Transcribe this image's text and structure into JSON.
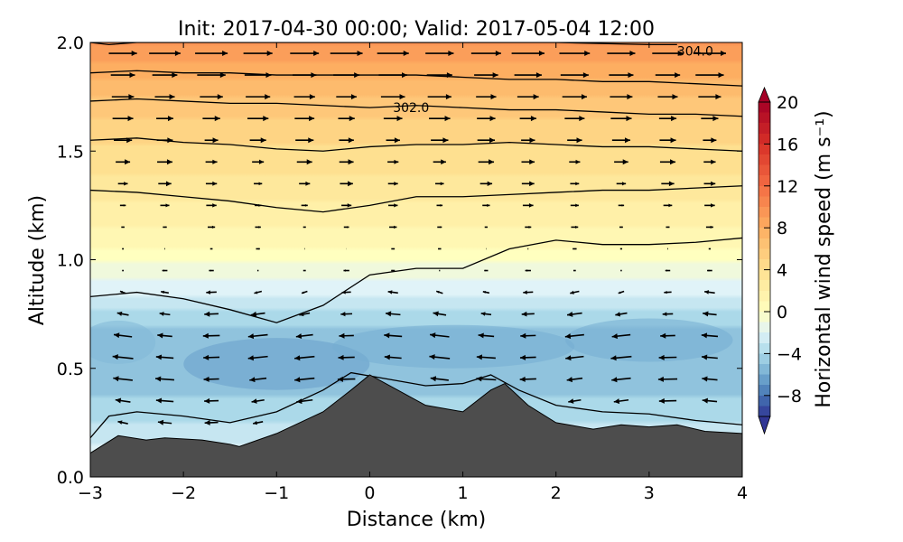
{
  "chart_data": {
    "type": "heatmap",
    "title": "Init: 2017-04-30 00:00; Valid: 2017-05-04 12:00",
    "xlabel": "Distance (km)",
    "ylabel": "Altitude (km)",
    "xlim": [
      -3,
      4
    ],
    "ylim": [
      0,
      2
    ],
    "xticks": [
      "−3",
      "−2",
      "−1",
      "0",
      "1",
      "2",
      "3",
      "4"
    ],
    "xtick_values": [
      -3,
      -2,
      -1,
      0,
      1,
      2,
      3,
      4
    ],
    "yticks": [
      "0.0",
      "0.5",
      "1.0",
      "1.5",
      "2.0"
    ],
    "ytick_values": [
      0,
      0.5,
      1.0,
      1.5,
      2.0
    ],
    "colorbar": {
      "label": "Horizontal wind speed (m s⁻¹)",
      "range": [
        -10,
        20
      ],
      "ticks": [
        "20",
        "16",
        "12",
        "8",
        "4",
        "0",
        "−4",
        "−8"
      ],
      "tick_values": [
        20,
        16,
        12,
        8,
        4,
        0,
        -4,
        -8
      ],
      "colormap_stops": [
        [
          -10,
          "#313695"
        ],
        [
          -8,
          "#4575b4"
        ],
        [
          -6,
          "#74add1"
        ],
        [
          -4,
          "#abd9e9"
        ],
        [
          -2,
          "#e0f3f8"
        ],
        [
          0,
          "#ffffbf"
        ],
        [
          4,
          "#fee090"
        ],
        [
          8,
          "#fdae61"
        ],
        [
          12,
          "#f46d43"
        ],
        [
          16,
          "#d73027"
        ],
        [
          20,
          "#a50026"
        ]
      ]
    },
    "wind_profile": {
      "altitude_km": [
        0.1,
        0.3,
        0.5,
        0.65,
        0.8,
        0.95,
        1.05,
        1.2,
        1.4,
        1.6,
        1.8,
        2.0
      ],
      "speed_ms": [
        -2,
        -4,
        -5.5,
        -5,
        -3,
        -1,
        0.5,
        2,
        3.5,
        5,
        7,
        9.5
      ]
    },
    "terrain": {
      "x_km": [
        -3,
        -2.7,
        -2.4,
        -2.2,
        -1.8,
        -1.5,
        -1.4,
        -1.0,
        -0.5,
        -0.2,
        0,
        0.3,
        0.6,
        1.0,
        1.3,
        1.45,
        1.7,
        2.0,
        2.4,
        2.7,
        3.0,
        3.3,
        3.6,
        4.0
      ],
      "altitude_km": [
        0.11,
        0.19,
        0.17,
        0.18,
        0.17,
        0.15,
        0.14,
        0.2,
        0.3,
        0.4,
        0.47,
        0.4,
        0.33,
        0.3,
        0.4,
        0.43,
        0.33,
        0.25,
        0.22,
        0.24,
        0.23,
        0.24,
        0.21,
        0.2
      ],
      "color": "#4d4d4d"
    },
    "contours": [
      {
        "x_km": [
          -3,
          -2.8,
          -2.5,
          -2,
          -1.5,
          -1,
          -0.5,
          -0.2,
          0.2,
          0.6,
          1.0,
          1.3,
          1.6,
          2.0,
          2.5,
          3.0,
          3.5,
          4.0
        ],
        "altitude_km": [
          0.18,
          0.28,
          0.3,
          0.28,
          0.25,
          0.3,
          0.4,
          0.48,
          0.45,
          0.42,
          0.43,
          0.47,
          0.4,
          0.33,
          0.3,
          0.29,
          0.26,
          0.24
        ]
      },
      {
        "x_km": [
          -3,
          -2.5,
          -2,
          -1.5,
          -1,
          -0.5,
          0,
          0.5,
          1.0,
          1.5,
          2.0,
          2.5,
          3.0,
          3.5,
          4.0
        ],
        "altitude_km": [
          0.83,
          0.85,
          0.82,
          0.77,
          0.71,
          0.79,
          0.93,
          0.96,
          0.96,
          1.05,
          1.09,
          1.07,
          1.07,
          1.08,
          1.1
        ]
      },
      {
        "x_km": [
          -3,
          -2.5,
          -2,
          -1.5,
          -1,
          -0.5,
          0,
          0.5,
          1.0,
          1.5,
          2.0,
          2.5,
          3.0,
          3.5,
          4.0
        ],
        "altitude_km": [
          1.32,
          1.31,
          1.29,
          1.27,
          1.24,
          1.22,
          1.25,
          1.29,
          1.29,
          1.3,
          1.31,
          1.32,
          1.32,
          1.33,
          1.34
        ]
      },
      {
        "x_km": [
          -3,
          -2.5,
          -2,
          -1.5,
          -1,
          -0.5,
          0,
          0.5,
          1.0,
          1.5,
          2.0,
          2.5,
          3.0,
          3.5,
          4.0
        ],
        "altitude_km": [
          1.55,
          1.56,
          1.54,
          1.53,
          1.51,
          1.5,
          1.52,
          1.53,
          1.53,
          1.54,
          1.53,
          1.52,
          1.52,
          1.51,
          1.5
        ]
      },
      {
        "x_km": [
          -3,
          -2.5,
          -2,
          -1.5,
          -1,
          -0.5,
          0,
          0.5,
          1.0,
          1.5,
          2.0,
          2.5,
          3.0,
          3.5,
          4.0
        ],
        "altitude_km": [
          1.73,
          1.74,
          1.73,
          1.72,
          1.72,
          1.71,
          1.7,
          1.71,
          1.7,
          1.69,
          1.69,
          1.68,
          1.67,
          1.67,
          1.66
        ]
      },
      {
        "x_km": [
          -3,
          -2.5,
          -2,
          -1.5,
          -1,
          -0.5,
          0,
          0.5,
          1.0,
          1.5,
          2.0,
          2.5,
          3.0,
          3.5,
          4.0
        ],
        "altitude_km": [
          1.86,
          1.87,
          1.86,
          1.86,
          1.85,
          1.85,
          1.85,
          1.85,
          1.84,
          1.83,
          1.83,
          1.82,
          1.82,
          1.81,
          1.8
        ]
      },
      {
        "x_km": [
          -3,
          -2.8,
          -2.5,
          -2,
          0,
          1.0,
          2.0,
          3.0,
          3.3
        ],
        "altitude_km": [
          2.0,
          1.99,
          2.0,
          2.0,
          2.0,
          2.0,
          2.0,
          1.99,
          1.99
        ]
      }
    ],
    "contour_labels": [
      {
        "text": "302.0",
        "x_km": 0.25,
        "altitude_km": 1.7
      },
      {
        "text": "304.0",
        "x_km": 3.3,
        "altitude_km": 1.96
      }
    ],
    "quiver": {
      "x_km": [
        -2.65,
        -2.2,
        -1.7,
        -1.2,
        -0.7,
        -0.25,
        0.25,
        0.75,
        1.25,
        1.7,
        2.2,
        2.7,
        3.2,
        3.65
      ],
      "altitude_start_km": 0.25,
      "altitude_step_km": 0.1
    }
  }
}
